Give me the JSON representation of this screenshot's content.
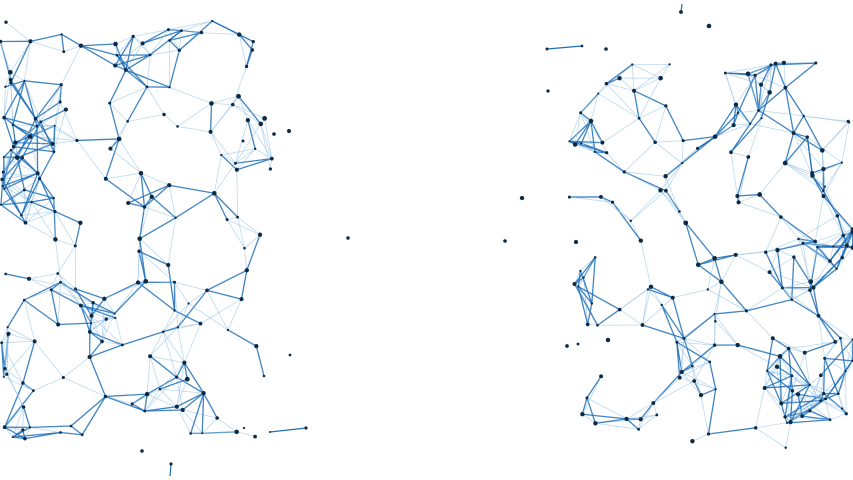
{
  "scene": {
    "background_color": "#ffffff",
    "line_color": "#1f6fb8",
    "line_color_light": "#8fc0e6",
    "node_color": "#0d2a44"
  }
}
